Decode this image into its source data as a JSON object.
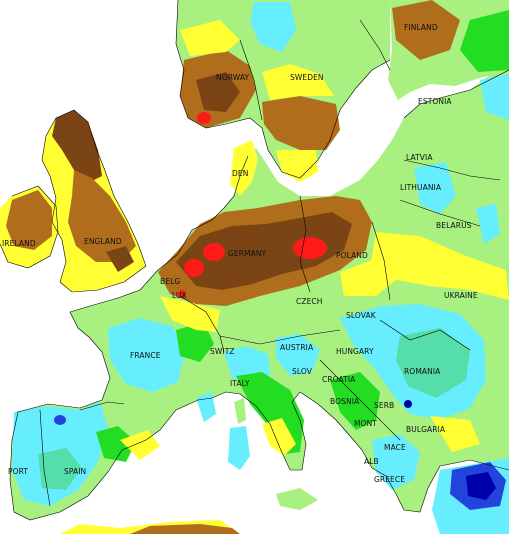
{
  "map": {
    "palette": {
      "sea": "#ffffff",
      "red": "#ff1a1a",
      "dark_brown": "#7a4414",
      "brown": "#b06d1c",
      "yellow": "#ffff33",
      "light_green": "#a8f080",
      "green": "#22dd22",
      "turquoise": "#55ddaa",
      "cyan": "#66eeff",
      "blue": "#2244dd",
      "navy": "#0000aa",
      "contour": "#000000"
    },
    "labels": {
      "finland": "FINLAND",
      "norway": "NORWAY",
      "sweden": "SWEDEN",
      "estonia": "ESTONIA",
      "latvia": "LATVIA",
      "lithuania": "LITHUANIA",
      "belarus": "BELARUS",
      "ireland": "IRELAND",
      "england": "ENGLAND",
      "germany": "GERMANY",
      "poland": "POLAND",
      "ukraine": "UKRAINE",
      "czech": "CZECH",
      "slovak": "SLOVAK",
      "hungary": "HUNGARY",
      "austria": "AUSTRIA",
      "switz": "SWITZ",
      "slov": "SLOV",
      "croatia": "CROATIA",
      "bosnia": "BOSNIA",
      "romania": "ROMANIA",
      "serb": "SERB",
      "mont": "MONT",
      "bulgaria": "BULGARIA",
      "mace": "MACE",
      "alb": "ALB",
      "greece": "GREECE",
      "france": "FRANCE",
      "italy": "ITALY",
      "spain": "SPAIN",
      "port": "PORT",
      "belg": "BELG",
      "lux": "LUX",
      "den": "DEN"
    }
  }
}
